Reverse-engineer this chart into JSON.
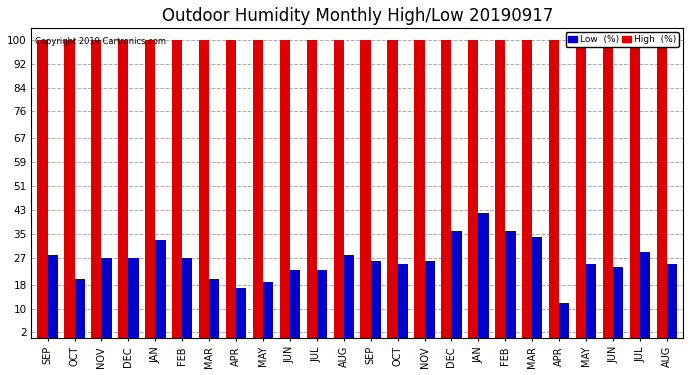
{
  "title": "Outdoor Humidity Monthly High/Low 20190917",
  "copyright": "Copyright 2019 Cartronics.com",
  "months": [
    "SEP",
    "OCT",
    "NOV",
    "DEC",
    "JAN",
    "FEB",
    "MAR",
    "APR",
    "MAY",
    "JUN",
    "JUL",
    "AUG",
    "SEP",
    "OCT",
    "NOV",
    "DEC",
    "JAN",
    "FEB",
    "MAR",
    "APR",
    "MAY",
    "JUN",
    "JUL",
    "AUG"
  ],
  "high_values": [
    100,
    100,
    100,
    100,
    100,
    100,
    100,
    100,
    100,
    100,
    100,
    100,
    100,
    100,
    100,
    100,
    100,
    100,
    100,
    100,
    100,
    100,
    100,
    100
  ],
  "low_values": [
    28,
    20,
    27,
    27,
    33,
    27,
    20,
    17,
    19,
    23,
    23,
    28,
    26,
    25,
    26,
    36,
    42,
    36,
    34,
    12,
    25,
    24,
    29,
    25
  ],
  "high_color": "#dd0000",
  "low_color": "#0000cc",
  "bg_color": "#ffffff",
  "yticks": [
    2,
    10,
    18,
    27,
    35,
    43,
    51,
    59,
    67,
    76,
    84,
    92,
    100
  ],
  "ymin": 0,
  "ymax": 104,
  "title_fontsize": 12,
  "tick_fontsize": 7.5,
  "legend_label_low": "Low  (%)",
  "legend_label_high": "High  (%)"
}
